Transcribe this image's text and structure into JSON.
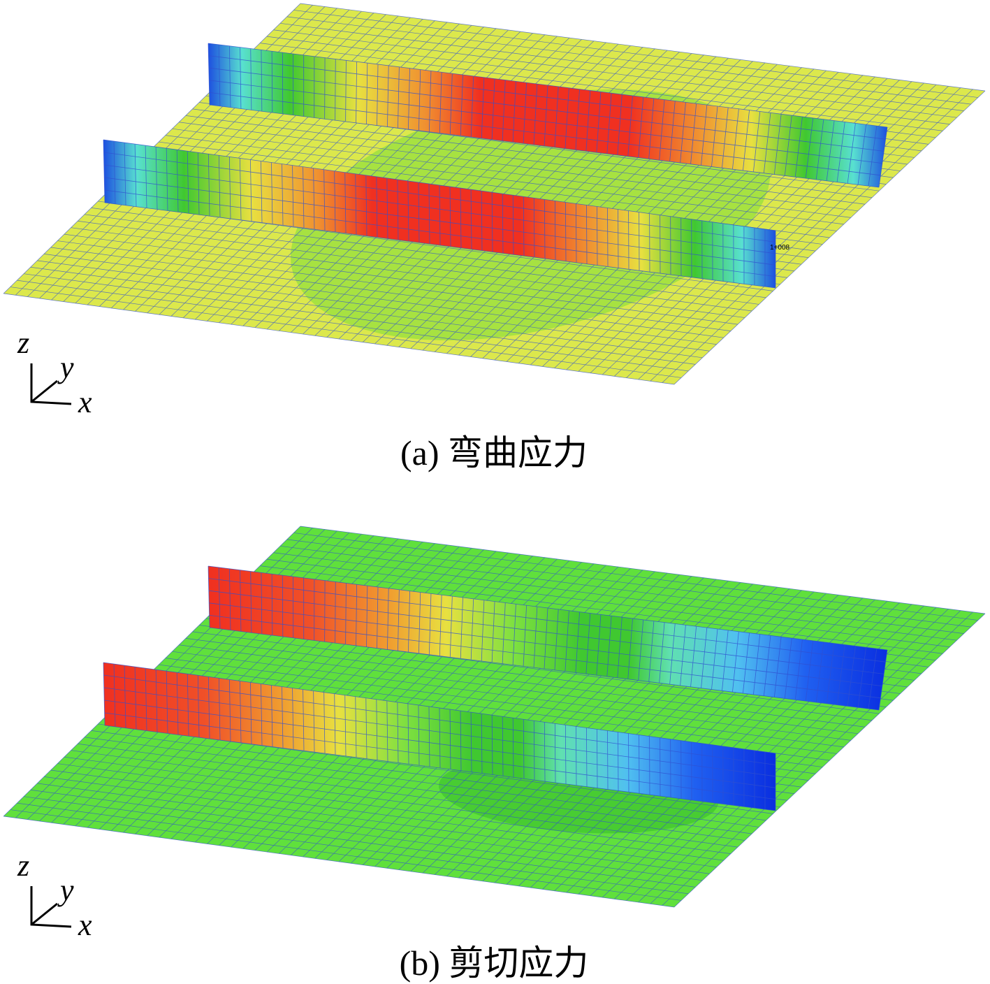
{
  "panels": [
    {
      "caption": "(a) 弯曲应力",
      "axes": {
        "z": "z",
        "y": "y",
        "x": "x"
      },
      "annotation": "1+008"
    },
    {
      "caption": "(b) 剪切应力",
      "axes": {
        "z": "z",
        "y": "y",
        "x": "x"
      }
    }
  ]
}
